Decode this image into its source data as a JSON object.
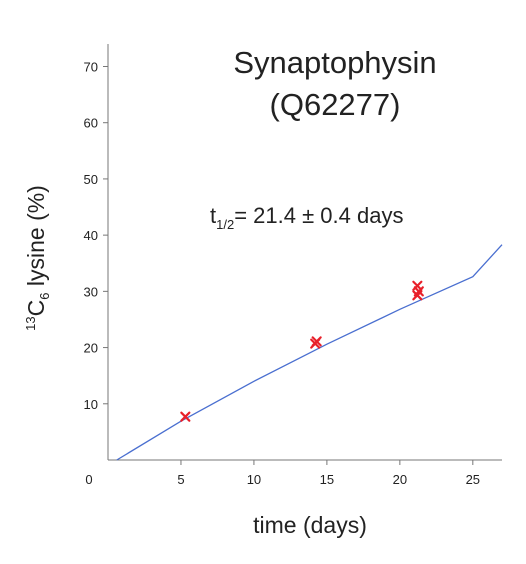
{
  "chart_data": {
    "type": "scatter",
    "title": "Synaptophysin",
    "subtitle": "(Q62277)",
    "xlabel": "time (days)",
    "ylabel": {
      "superscript": "13",
      "base": "C",
      "subscript": "6",
      "rest": " lysine (%)"
    },
    "annotation": {
      "prefix": "t",
      "subscript": "1/2",
      "rest": "= 21.4 ± 0.4 days"
    },
    "xlim": [
      0,
      27
    ],
    "ylim": [
      0,
      74
    ],
    "x_ticks": [
      5,
      10,
      15,
      20,
      25
    ],
    "x_tick_labels": [
      "5",
      "10",
      "15",
      "20",
      "25"
    ],
    "origin_label": "0",
    "y_ticks": [
      10,
      20,
      30,
      40,
      50,
      60,
      70
    ],
    "y_tick_labels": [
      "10",
      "20",
      "30",
      "40",
      "50",
      "60",
      "70"
    ],
    "grid": false,
    "series": [
      {
        "kind": "points",
        "marker": "x",
        "color": "#e8202a",
        "points": [
          {
            "x": 5.3,
            "y": 7.7
          },
          {
            "x": 14.2,
            "y": 20.7
          },
          {
            "x": 14.3,
            "y": 21.1
          },
          {
            "x": 21.2,
            "y": 29.3
          },
          {
            "x": 21.3,
            "y": 30.0
          },
          {
            "x": 21.2,
            "y": 31.0
          }
        ]
      },
      {
        "kind": "fit",
        "color": "#4a6fd0",
        "points": [
          {
            "x": 0.6,
            "y": 0
          },
          {
            "x": 5,
            "y": 6.9
          },
          {
            "x": 10,
            "y": 14.0
          },
          {
            "x": 15,
            "y": 20.6
          },
          {
            "x": 20,
            "y": 26.8
          },
          {
            "x": 25,
            "y": 32.6
          },
          {
            "x": 27,
            "y": 38.3
          }
        ]
      }
    ]
  }
}
